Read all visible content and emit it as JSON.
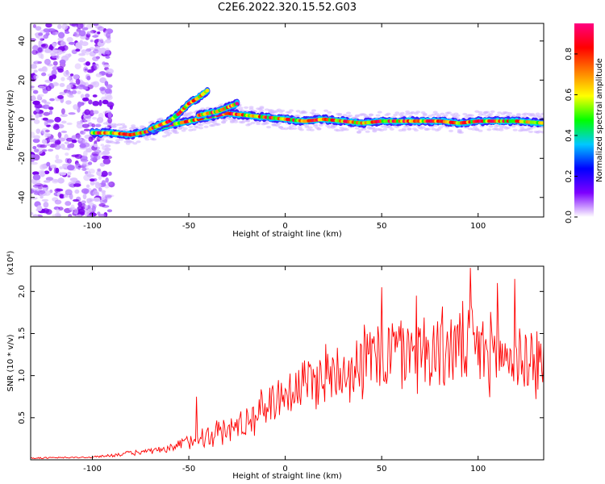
{
  "figure_title": "C2E6.2022.320.15.52.G03",
  "chart_data": [
    {
      "type": "heatmap",
      "title": "C2E6.2022.320.15.52.G03",
      "xlabel": "Height of straight line (km)",
      "ylabel": "Frequency (Hz)",
      "xlim": [
        -132,
        134
      ],
      "ylim": [
        -50,
        49
      ],
      "xticks": [
        -100,
        -50,
        0,
        50,
        100
      ],
      "yticks": [
        -40,
        -20,
        0,
        20,
        40
      ],
      "grid": false,
      "colorbar": {
        "label": "Normalized spectral amplitude",
        "range": [
          0.0,
          0.95
        ],
        "ticks": [
          0.0,
          0.2,
          0.4,
          0.6,
          0.8
        ],
        "colors": [
          "#ffffff",
          "#7d00ff",
          "#0000ff",
          "#00c8ff",
          "#00ff00",
          "#ffff00",
          "#ff7f00",
          "#ff0000",
          "#ff0080"
        ]
      },
      "noise_region": {
        "x_from": -132,
        "x_to": -90,
        "y_from": -50,
        "y_to": 49
      },
      "main_ridge": {
        "x": [
          -100,
          -90,
          -80,
          -70,
          -60,
          -50,
          -40,
          -30,
          -20,
          -10,
          0,
          10,
          20,
          30,
          40,
          50,
          60,
          70,
          80,
          90,
          100,
          110,
          120,
          134
        ],
        "y": [
          -7,
          -7,
          -8,
          -6,
          -3,
          -1,
          1,
          3,
          2,
          1,
          0,
          -1,
          0,
          -1,
          -2,
          -1,
          -1,
          -1,
          -1,
          -2,
          -1,
          -1,
          -1,
          -2
        ]
      },
      "upper_branch": {
        "x": [
          -70,
          -60,
          -55,
          -50,
          -45,
          -40
        ],
        "y": [
          -5,
          -1,
          3,
          8,
          11,
          15
        ]
      },
      "secondary_branch": {
        "x": [
          -45,
          -40,
          -35,
          -30,
          -25
        ],
        "y": [
          2,
          3,
          4,
          6,
          8
        ]
      }
    },
    {
      "type": "line",
      "xlabel": "Height of straight line (km)",
      "ylabel": "SNR (10 * v/v)",
      "exponent_label": "(x10⁴)",
      "xlim": [
        -132,
        134
      ],
      "ylim": [
        0,
        2.3
      ],
      "xticks": [
        -100,
        -50,
        0,
        50,
        100
      ],
      "yticks": [
        0.5,
        1.0,
        1.5,
        2.0
      ],
      "grid": false,
      "series": [
        {
          "color": "#ff0000",
          "envelope_x": [
            -132,
            -100,
            -80,
            -60,
            -50,
            -40,
            -30,
            -20,
            -10,
            0,
            10,
            20,
            30,
            40,
            50,
            60,
            70,
            80,
            90,
            100,
            110,
            120,
            134
          ],
          "envelope_mean": [
            0.02,
            0.03,
            0.08,
            0.12,
            0.22,
            0.3,
            0.35,
            0.45,
            0.65,
            0.8,
            0.9,
            1.0,
            1.1,
            1.15,
            1.25,
            1.3,
            1.3,
            1.3,
            1.35,
            1.3,
            1.25,
            1.2,
            1.15
          ],
          "envelope_spread": [
            0.01,
            0.01,
            0.03,
            0.05,
            0.12,
            0.15,
            0.18,
            0.2,
            0.25,
            0.3,
            0.35,
            0.4,
            0.4,
            0.45,
            0.5,
            0.5,
            0.5,
            0.5,
            0.5,
            0.5,
            0.45,
            0.45,
            0.45
          ],
          "peaks": [
            {
              "x": -46,
              "y": 0.75
            },
            {
              "x": 50,
              "y": 2.05
            },
            {
              "x": 68,
              "y": 1.95
            },
            {
              "x": 96,
              "y": 2.28
            },
            {
              "x": 110,
              "y": 2.1
            },
            {
              "x": 119,
              "y": 2.15
            }
          ]
        }
      ]
    }
  ]
}
